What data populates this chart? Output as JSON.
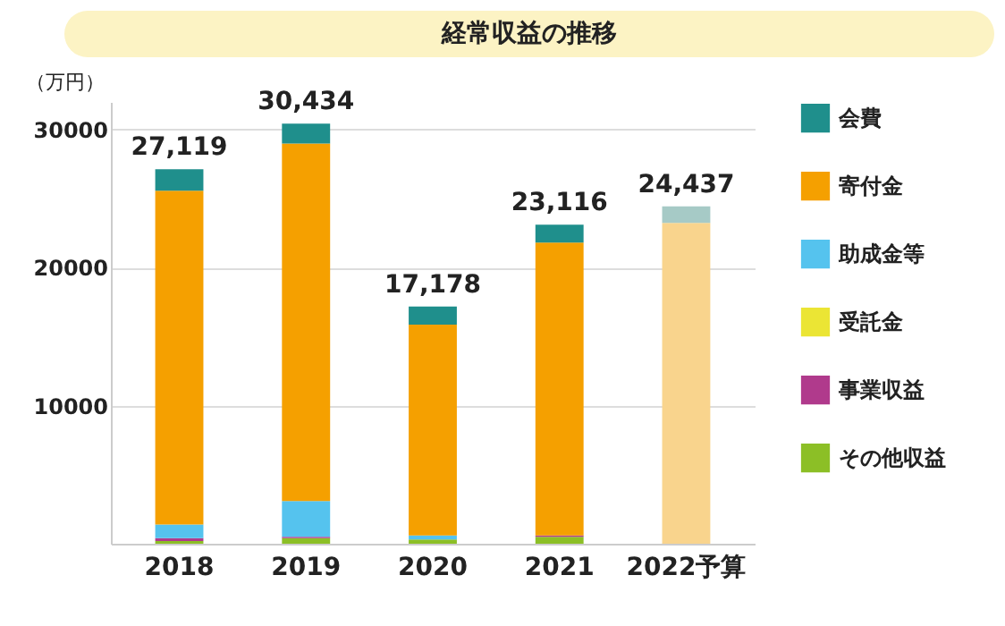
{
  "chart_data": {
    "type": "bar",
    "stacked": true,
    "title": "経常収益の推移",
    "ylabel": "（万円）",
    "categories": [
      "2018",
      "2019",
      "2020",
      "2021",
      "2022予算"
    ],
    "series": [
      {
        "name": "その他収益",
        "color": "#8cbf26",
        "values": [
          200,
          400,
          300,
          500,
          null
        ]
      },
      {
        "name": "事業収益",
        "color": "#b03a8c",
        "values": [
          200,
          100,
          null,
          100,
          null
        ]
      },
      {
        "name": "受託金",
        "color": "#ebe534",
        "values": [
          null,
          null,
          null,
          null,
          null
        ]
      },
      {
        "name": "助成金等",
        "color": "#55c3ee",
        "values": [
          1000,
          2600,
          300,
          null,
          null
        ]
      },
      {
        "name": "寄付金",
        "color": "#f5a000",
        "colors": [
          "#f5a000",
          "#f5a000",
          "#f5a000",
          "#f5a000",
          "#f9d48d"
        ],
        "values": [
          24169,
          25884,
          15278,
          21216,
          23237
        ]
      },
      {
        "name": "会費",
        "color": "#1f8f8c",
        "colors": [
          "#1f8f8c",
          "#1f8f8c",
          "#1f8f8c",
          "#1f8f8c",
          "#a6cac6"
        ],
        "values": [
          1550,
          1450,
          1300,
          1300,
          1200
        ]
      }
    ],
    "totals": [
      "27,119",
      "30,434",
      "17,178",
      "23,116",
      "24,437"
    ],
    "ylim": [
      0,
      32000
    ],
    "yticks": [
      {
        "value": 0,
        "label": null
      },
      10000,
      20000,
      30000
    ],
    "grid": "y",
    "legend": "right"
  }
}
